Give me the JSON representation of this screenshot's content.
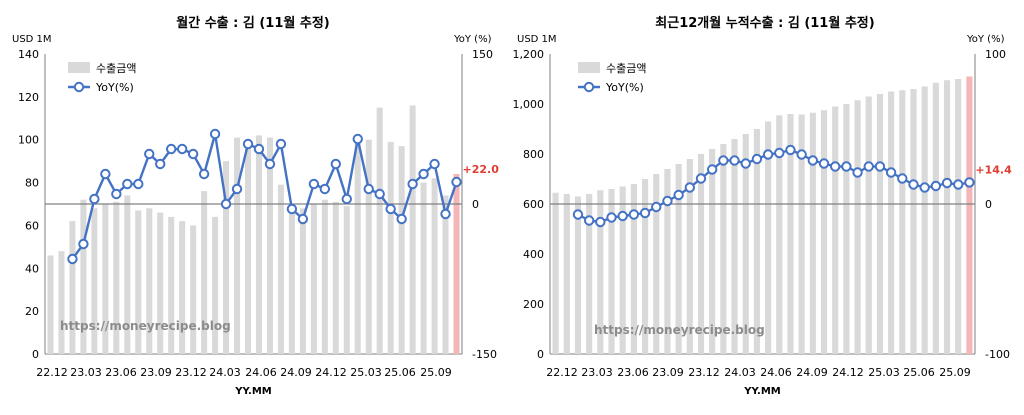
{
  "chart_data": [
    {
      "type": "bar",
      "title": "월간 수출 : 김 (11월 추정)",
      "y_unit": "USD 1M",
      "y2_unit": "YoY (%)",
      "xlabel": "YY.MM",
      "watermark": "https://moneyrecipe.blog",
      "ylim": [
        0,
        140
      ],
      "y_ticks": [
        "0",
        "20",
        "40",
        "60",
        "80",
        "100",
        "120",
        "140"
      ],
      "y2lim": [
        -150,
        150
      ],
      "y2_ticks": [
        "-150",
        "0",
        "150"
      ],
      "x_tick_labels": [
        "22.12",
        "23.03",
        "23.06",
        "23.09",
        "23.12",
        "24.03",
        "24.06",
        "24.09",
        "24.12",
        "25.03",
        "25.06",
        "25.09"
      ],
      "latest_label": "+22.0",
      "colors": {
        "bar": "#d9d9d9",
        "bar_last": "#f4b6b6",
        "line": "#4472c4",
        "marker_fill": "#ffffff",
        "highlight": "#e03c31"
      },
      "legend": {
        "bar": "수출금액",
        "line": "YoY(%)"
      },
      "series": [
        {
          "name": "수출금액",
          "values": [
            46,
            48,
            62,
            72,
            68,
            70,
            71,
            74,
            67,
            68,
            66,
            64,
            62,
            60,
            76,
            64,
            90,
            101,
            100,
            102,
            101,
            79,
            70,
            68,
            70,
            72,
            71,
            69,
            100,
            100,
            115,
            99,
            97,
            116,
            80,
            82,
            74,
            84
          ]
        },
        {
          "name": "YoY(%)",
          "values": [
            -55,
            -40,
            5,
            30,
            10,
            20,
            20,
            50,
            40,
            55,
            55,
            50,
            30,
            70,
            0,
            15,
            60,
            55,
            40,
            60,
            -5,
            -15,
            20,
            15,
            40,
            5,
            65,
            15,
            10,
            -5,
            -15,
            20,
            30,
            40,
            -10,
            22.0
          ]
        }
      ]
    },
    {
      "type": "bar",
      "title": "최근12개월 누적수출 : 김 (11월 추정)",
      "y_unit": "USD 1M",
      "y2_unit": "YoY (%)",
      "xlabel": "YY.MM",
      "watermark": "https://moneyrecipe.blog",
      "ylim": [
        0,
        1200
      ],
      "y_ticks": [
        "0",
        "200",
        "400",
        "600",
        "800",
        "1,000",
        "1,200"
      ],
      "y2lim": [
        -100,
        100
      ],
      "y2_ticks": [
        "-100",
        "0",
        "100"
      ],
      "x_tick_labels": [
        "22.12",
        "23.03",
        "23.06",
        "23.09",
        "23.12",
        "24.03",
        "24.06",
        "24.09",
        "24.12",
        "25.03",
        "25.06",
        "25.09"
      ],
      "latest_label": "+14.4",
      "colors": {
        "bar": "#d9d9d9",
        "bar_last": "#f4b6b6",
        "line": "#4472c4",
        "marker_fill": "#ffffff",
        "highlight": "#e03c31"
      },
      "legend": {
        "bar": "수출금액",
        "line": "YoY(%)"
      },
      "series": [
        {
          "name": "수출금액",
          "values": [
            645,
            640,
            630,
            640,
            655,
            660,
            670,
            680,
            700,
            720,
            740,
            760,
            780,
            800,
            820,
            840,
            860,
            880,
            900,
            930,
            955,
            960,
            958,
            965,
            975,
            990,
            1000,
            1015,
            1030,
            1040,
            1050,
            1055,
            1060,
            1070,
            1085,
            1095,
            1100,
            1110
          ]
        },
        {
          "name": "YoY(%)",
          "values": [
            -7,
            -11,
            -12,
            -9,
            -8,
            -7,
            -6,
            -2,
            2,
            6,
            11,
            17,
            23,
            29,
            29,
            27,
            30,
            33,
            34,
            36,
            33,
            29,
            27,
            25,
            25,
            21,
            25,
            25,
            21,
            17,
            13,
            11,
            12,
            14,
            13,
            14.4
          ]
        }
      ]
    }
  ]
}
